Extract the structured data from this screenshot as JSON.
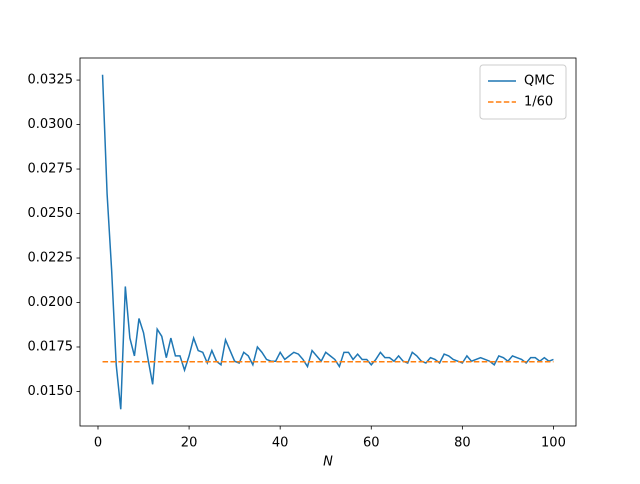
{
  "chart_data": {
    "type": "line",
    "xlabel": "N",
    "x_all": null,
    "series": [
      {
        "name": "QMC",
        "color": "#1f77b4",
        "dash": false,
        "x": [
          1,
          2,
          3,
          4,
          5,
          6,
          7,
          8,
          9,
          10,
          11,
          12,
          13,
          14,
          15,
          16,
          17,
          18,
          19,
          20,
          21,
          22,
          23,
          24,
          25,
          26,
          27,
          28,
          29,
          30,
          31,
          32,
          33,
          34,
          35,
          36,
          37,
          38,
          39,
          40,
          41,
          42,
          43,
          44,
          45,
          46,
          47,
          48,
          49,
          50,
          51,
          52,
          53,
          54,
          55,
          56,
          57,
          58,
          59,
          60,
          61,
          62,
          63,
          64,
          65,
          66,
          67,
          68,
          69,
          70,
          71,
          72,
          73,
          74,
          75,
          76,
          77,
          78,
          79,
          80,
          81,
          82,
          83,
          84,
          85,
          86,
          87,
          88,
          89,
          90,
          91,
          92,
          93,
          94,
          95,
          96,
          97,
          98,
          99,
          100
        ],
        "values": [
          0.0328,
          0.0261,
          0.0218,
          0.0165,
          0.014,
          0.0209,
          0.018,
          0.017,
          0.0191,
          0.0183,
          0.0168,
          0.0154,
          0.0185,
          0.0181,
          0.0169,
          0.018,
          0.017,
          0.017,
          0.0162,
          0.017,
          0.018,
          0.0173,
          0.0172,
          0.0166,
          0.0173,
          0.0167,
          0.0165,
          0.0179,
          0.0173,
          0.0167,
          0.0166,
          0.0172,
          0.017,
          0.0165,
          0.0175,
          0.0172,
          0.0168,
          0.0167,
          0.0167,
          0.0172,
          0.0168,
          0.017,
          0.0172,
          0.0171,
          0.0168,
          0.0164,
          0.0173,
          0.017,
          0.0167,
          0.0172,
          0.017,
          0.0168,
          0.0164,
          0.0172,
          0.0172,
          0.0168,
          0.0171,
          0.0168,
          0.0168,
          0.0165,
          0.0168,
          0.0172,
          0.0169,
          0.0169,
          0.0167,
          0.017,
          0.0167,
          0.0166,
          0.0172,
          0.017,
          0.0167,
          0.0166,
          0.0169,
          0.0168,
          0.0166,
          0.0171,
          0.017,
          0.0168,
          0.0167,
          0.0166,
          0.017,
          0.0167,
          0.0168,
          0.0169,
          0.0168,
          0.0167,
          0.0165,
          0.017,
          0.0169,
          0.0167,
          0.017,
          0.0169,
          0.0168,
          0.0166,
          0.0169,
          0.0169,
          0.0167,
          0.0169,
          0.0167,
          0.0168
        ]
      },
      {
        "name": "1/60",
        "color": "#ff7f0e",
        "dash": true,
        "x": [
          1,
          100
        ],
        "values": [
          0.016667,
          0.016667
        ]
      }
    ],
    "xlim": [
      -3.95,
      104.95
    ],
    "xticks": [
      0,
      20,
      40,
      60,
      80,
      100
    ],
    "ylim": [
      0.01306,
      0.03374
    ],
    "yticks": [
      {
        "value": 0.015,
        "label": "0.0150"
      },
      {
        "value": 0.0175,
        "label": "0.0175"
      },
      {
        "value": 0.02,
        "label": "0.0200"
      },
      {
        "value": 0.0225,
        "label": "0.0225"
      },
      {
        "value": 0.025,
        "label": "0.0250"
      },
      {
        "value": 0.0275,
        "label": "0.0275"
      },
      {
        "value": 0.03,
        "label": "0.0300"
      },
      {
        "value": 0.0325,
        "label": "0.0325"
      }
    ],
    "legend": "upper right"
  }
}
